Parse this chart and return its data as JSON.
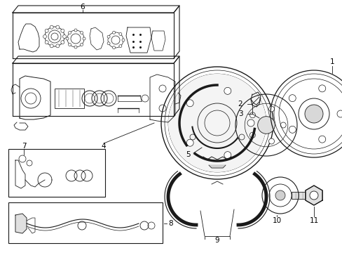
{
  "bg_color": "#ffffff",
  "line_color": "#1a1a1a",
  "figw": 4.89,
  "figh": 3.6,
  "label_fontsize": 7.5
}
